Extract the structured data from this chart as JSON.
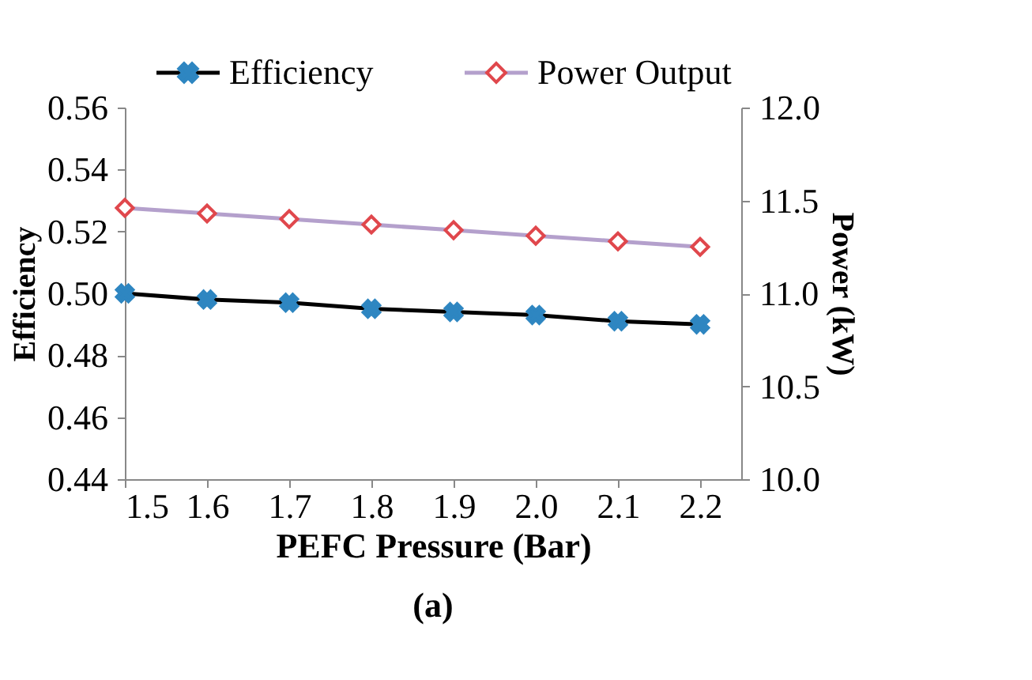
{
  "chart_data": {
    "type": "line",
    "xlabel": "PEFC Pressure (Bar)",
    "ylabel": "Efficiency",
    "y2label": "Power (kW)",
    "annotations": [
      "(a)"
    ],
    "x": [
      1.5,
      1.6,
      1.7,
      1.8,
      1.9,
      2.0,
      2.1,
      2.2
    ],
    "series": [
      {
        "name": "Efficiency",
        "color": "#2e86c1",
        "marker": "cross",
        "values": [
          0.5,
          0.498,
          0.497,
          0.495,
          0.494,
          0.493,
          0.491,
          0.49
        ]
      },
      {
        "name": "Power Output",
        "color": "#e0474c",
        "marker": "diamond",
        "axis": "y2",
        "values": [
          11.46,
          11.43,
          11.4,
          11.37,
          11.34,
          11.31,
          11.28,
          11.25
        ]
      }
    ],
    "xlim": [
      1.5,
      2.25
    ],
    "xticks": [
      1.5,
      1.6,
      1.7,
      1.8,
      1.9,
      {
        "value": 2.0,
        "label": "2.0"
      },
      2.1,
      2.2
    ],
    "ylim": [
      0.44,
      0.56
    ],
    "yticks": [
      0.44,
      0.46,
      0.48,
      {
        "value": 0.5,
        "label": "0.50"
      },
      0.52,
      0.54,
      0.56
    ],
    "y2lim": [
      10,
      12
    ],
    "y2ticks": [
      {
        "value": 10,
        "label": "10.0"
      },
      10.5,
      {
        "value": 11,
        "label": "11.0"
      },
      11.5,
      {
        "value": 12,
        "label": "12.0"
      }
    ],
    "legend": "top",
    "grid": false
  }
}
